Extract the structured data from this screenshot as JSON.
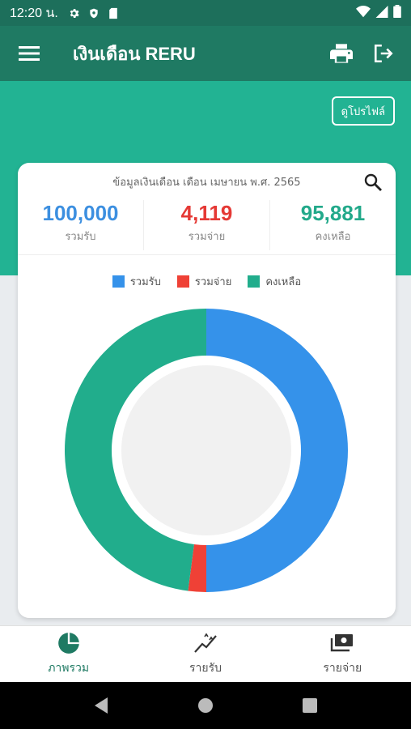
{
  "status_bar": {
    "time": "12:20 น."
  },
  "app_bar": {
    "title": "เงินเดือน RERU",
    "menu_icon": "hamburger-icon",
    "print_icon": "print-icon",
    "logout_icon": "logout-icon"
  },
  "profile_button": {
    "label": "ดูโปรไฟล์"
  },
  "summary": {
    "caption": "ข้อมูลเงินเดือน เดือน เมษายน พ.ศ. 2565",
    "income": {
      "value": "100,000",
      "label": "รวมรับ",
      "color": "#3c8fe0"
    },
    "expense": {
      "value": "4,119",
      "label": "รวมจ่าย",
      "color": "#e53935"
    },
    "balance": {
      "value": "95,881",
      "label": "คงเหลือ",
      "color": "#22a98a"
    }
  },
  "chart_data": {
    "type": "pie",
    "donut": true,
    "legend": "top",
    "series": [
      {
        "name": "รวมรับ",
        "value": 100000,
        "color": "#3592ea"
      },
      {
        "name": "รวมจ่าย",
        "value": 4119,
        "color": "#ef4136"
      },
      {
        "name": "คงเหลือ",
        "value": 95881,
        "color": "#21ad8c"
      }
    ]
  },
  "bottom_nav": {
    "items": [
      {
        "label": "ภาพรวม",
        "icon": "pie-chart-icon",
        "active": true
      },
      {
        "label": "รายรับ",
        "icon": "trending-up-icon",
        "active": false
      },
      {
        "label": "รายจ่าย",
        "icon": "payments-icon",
        "active": false
      }
    ]
  },
  "system_nav": {
    "back_icon": "back-triangle-icon",
    "home_icon": "home-circle-icon",
    "recents_icon": "recents-square-icon"
  }
}
